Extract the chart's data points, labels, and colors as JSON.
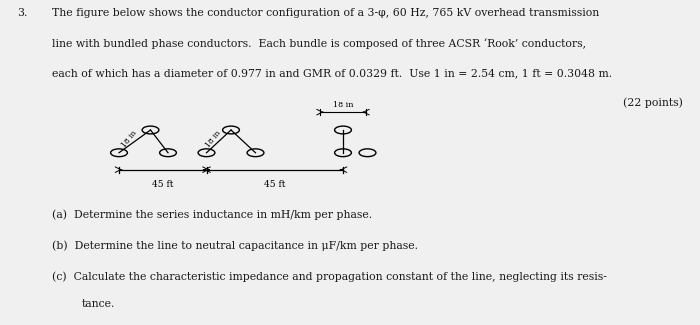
{
  "background_color": "#f0f0f0",
  "text_color": "#1a1a1a",
  "problem_number": "3.",
  "problem_text_line1": "The figure below shows the conductor configuration of a 3-φ, 60 Hz, 765 kV overhead transmission",
  "problem_text_line2": "line with bundled phase conductors.  Each bundle is composed of three ACSR ‘Rook’ conductors,",
  "problem_text_line3": "each of which has a diameter of 0.977 in and GMR of 0.0329 ft.  Use 1 in = 2.54 cm, 1 ft = 0.3048 m.",
  "problem_text_line4": "(22 points)",
  "sub_a": "(a)  Determine the series inductance in mH/km per phase.",
  "sub_b": "(b)  Determine the line to neutral capacitance in μF/km per phase.",
  "sub_c": "(c)  Calculate the characteristic impedance and propagation constant of the line, neglecting its resis-",
  "sub_c2": "tance.",
  "fig_label_18in_left": "18 in",
  "fig_label_18in_mid": "18 in",
  "fig_label_18in_right": "18 in",
  "fig_label_45ft_left": "45 ft",
  "fig_label_45ft_right": "45 ft"
}
